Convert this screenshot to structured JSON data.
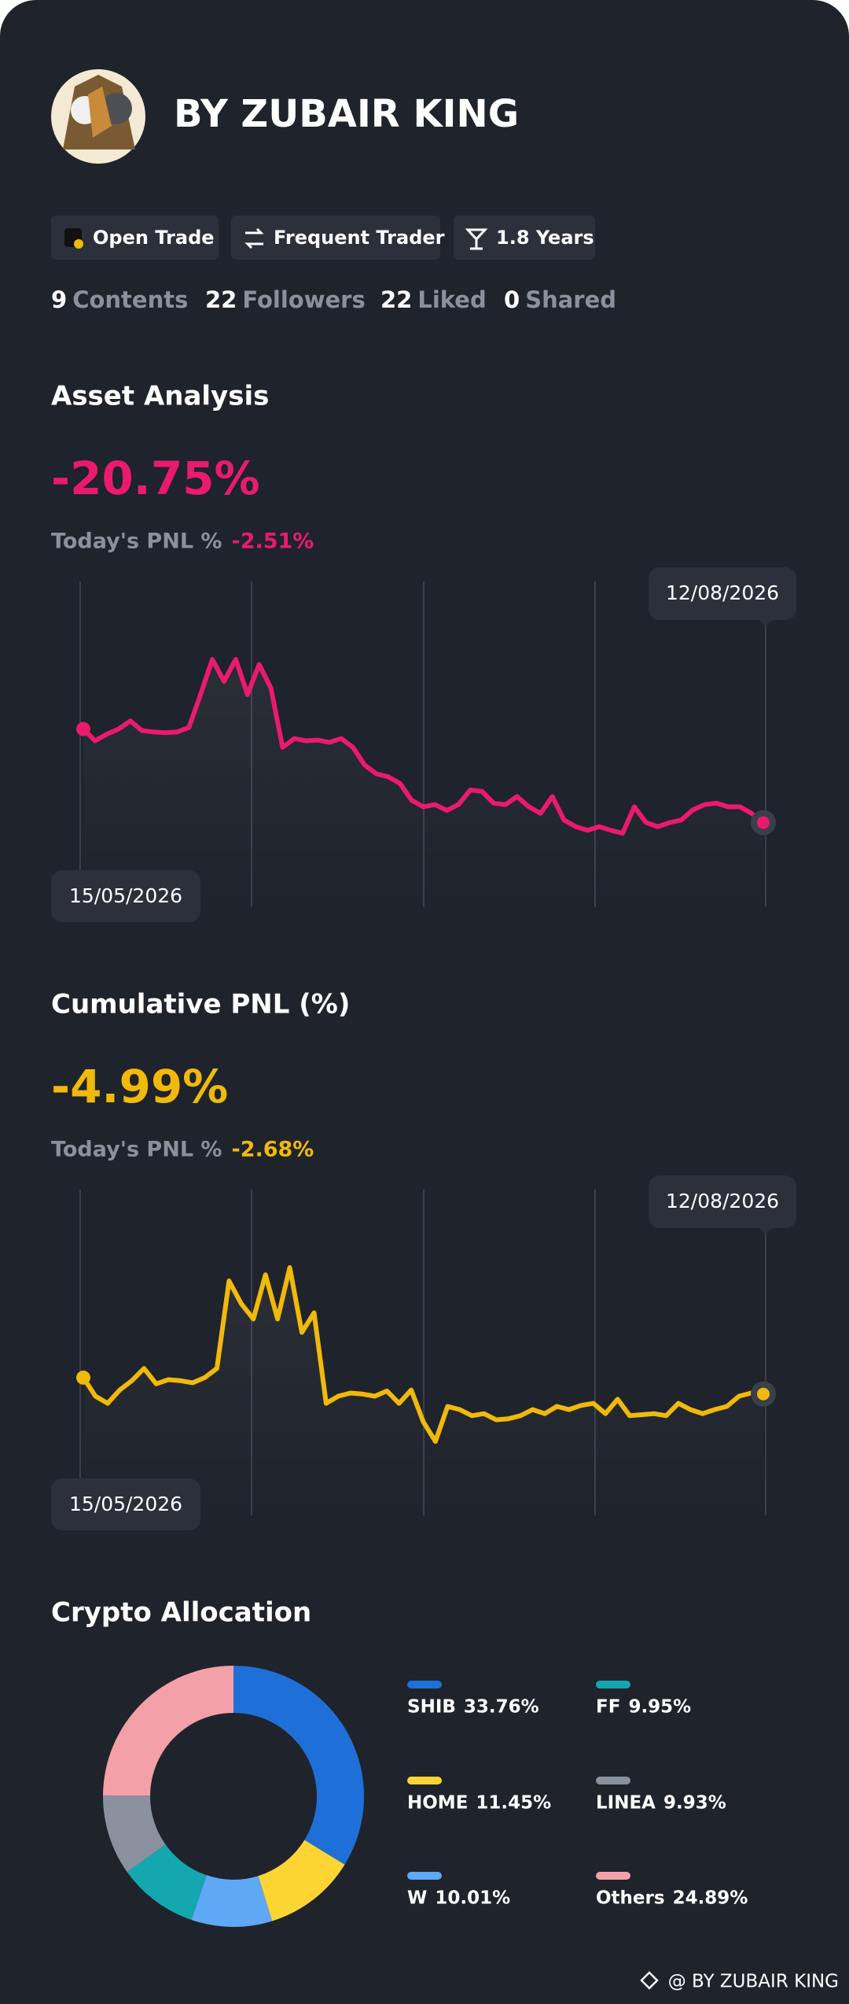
{
  "profile": {
    "name": "BY ZUBAIR KING",
    "badges": [
      "Open Trade",
      "Frequent Trader",
      "1.8 Years"
    ],
    "stats": [
      {
        "value": 9,
        "label": "Contents"
      },
      {
        "value": 22,
        "label": "Followers"
      },
      {
        "value": 22,
        "label": "Liked"
      },
      {
        "value": 0,
        "label": "Shared"
      }
    ]
  },
  "chart_data": [
    {
      "type": "line",
      "title": "Asset Analysis",
      "headline": "-20.75%",
      "today_label": "Today's PNL %",
      "today_value": "-2.51%",
      "start_label": "15/05/2026",
      "end_label": "12/08/2026",
      "color": "#ea1a6f",
      "values": [
        -8.0,
        -9.6,
        -8.7,
        -8.0,
        -6.9,
        -8.2,
        -8.4,
        -8.5,
        -8.4,
        -7.8,
        -3.3,
        1.5,
        -1.5,
        1.5,
        -3.3,
        0.8,
        -2.4,
        -10.5,
        -9.3,
        -9.6,
        -9.5,
        -9.8,
        -9.3,
        -10.5,
        -12.9,
        -14.1,
        -14.5,
        -15.4,
        -17.7,
        -18.6,
        -18.3,
        -19.1,
        -18.3,
        -16.3,
        -16.5,
        -18.1,
        -18.3,
        -17.2,
        -18.6,
        -19.5,
        -17.2,
        -20.4,
        -21.3,
        -21.8,
        -21.3,
        -21.8,
        -22.2,
        -18.6,
        -20.75,
        -21.3,
        -20.75,
        -20.4,
        -19.0,
        -18.3,
        -18.1,
        -18.6,
        -18.6,
        -19.5,
        -20.75
      ]
    },
    {
      "type": "line",
      "title": "Cumulative PNL (%)",
      "headline": "-4.99%",
      "today_label": "Today's PNL %",
      "today_value": "-2.68%",
      "start_label": "15/05/2026",
      "end_label": "12/08/2026",
      "color": "#f0b90b",
      "values": [
        -3.4,
        -5.2,
        -5.9,
        -4.6,
        -3.7,
        -2.5,
        -4.0,
        -3.6,
        -3.7,
        -3.9,
        -3.4,
        -2.5,
        6.0,
        3.8,
        2.3,
        6.6,
        2.3,
        7.3,
        1.0,
        2.9,
        -5.9,
        -5.2,
        -4.9,
        -5.0,
        -5.2,
        -4.7,
        -5.9,
        -4.6,
        -7.7,
        -9.6,
        -6.2,
        -6.5,
        -7.1,
        -6.9,
        -7.5,
        -7.4,
        -7.1,
        -6.5,
        -6.9,
        -6.2,
        -6.5,
        -6.1,
        -5.9,
        -6.9,
        -5.5,
        -7.1,
        -7.0,
        -6.9,
        -7.1,
        -5.9,
        -6.5,
        -6.9,
        -6.5,
        -6.2,
        -5.2,
        -4.9,
        -4.99
      ]
    },
    {
      "type": "pie",
      "title": "Crypto Allocation",
      "categories": [
        "SHIB",
        "HOME",
        "W",
        "FF",
        "LINEA",
        "Others"
      ],
      "values": [
        33.76,
        11.45,
        10.01,
        9.95,
        9.93,
        24.89
      ],
      "value_labels": [
        "33.76%",
        "11.45%",
        "10.01%",
        "9.95%",
        "9.93%",
        "24.89%"
      ],
      "colors": [
        "#1f6fd8",
        "#fcd535",
        "#5fa8f5",
        "#14a7b0",
        "#8a919e",
        "#f4a0a8"
      ]
    }
  ],
  "footer": "@ BY ZUBAIR KING"
}
